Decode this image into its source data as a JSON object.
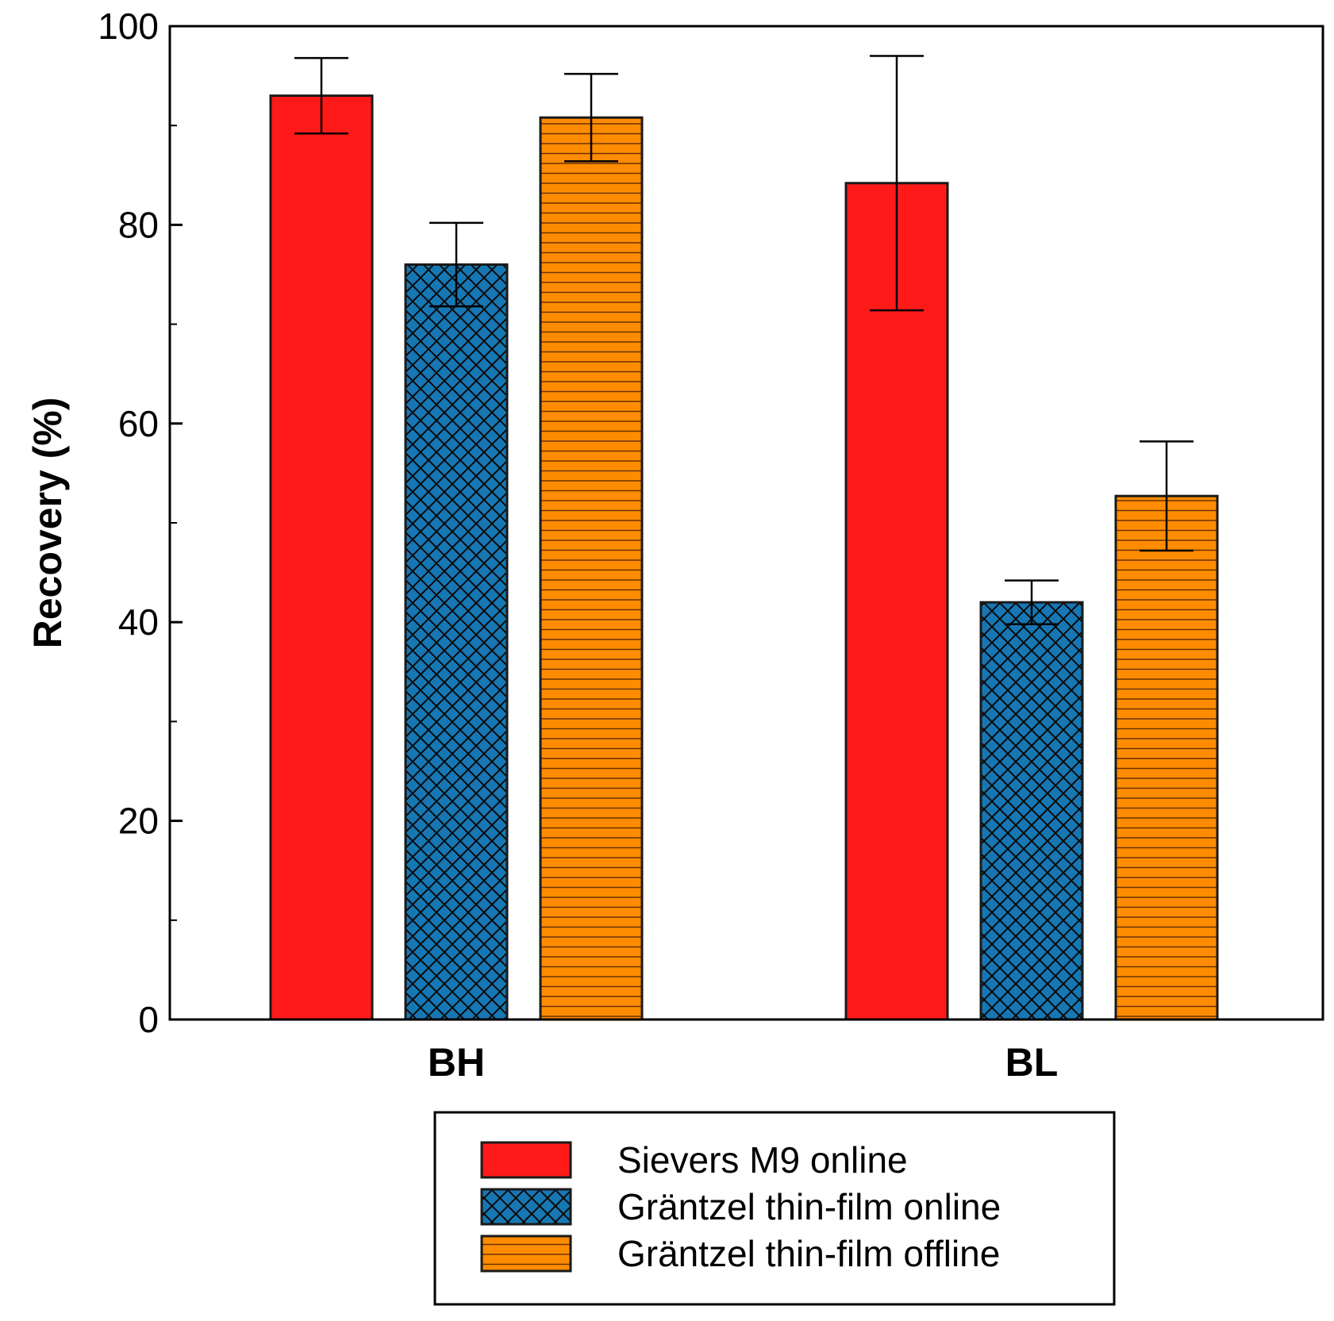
{
  "chart_data": {
    "type": "bar",
    "title": "",
    "xlabel": "",
    "ylabel": "Recovery (%)",
    "ylim": [
      0,
      100
    ],
    "yticks_major": [
      0,
      20,
      40,
      60,
      80,
      100
    ],
    "yticks_minor": [
      10,
      30,
      50,
      70,
      90
    ],
    "categories": [
      "BH",
      "BL"
    ],
    "grid": false,
    "legend_position": "bottom-center",
    "series": [
      {
        "name": "Sievers M9 online",
        "color": "#ff1a1a",
        "pattern": "solid",
        "values": [
          93,
          84.2
        ],
        "error_low": [
          89.2,
          71.4
        ],
        "error_high": [
          96.8,
          97.0
        ]
      },
      {
        "name": "Gräntzel thin-film online",
        "color": "#1777b3",
        "pattern": "crosshatch",
        "values": [
          76,
          42
        ],
        "error_low": [
          71.8,
          39.8
        ],
        "error_high": [
          80.2,
          44.2
        ]
      },
      {
        "name": "Gräntzel thin-film offline",
        "color": "#ff8c00",
        "pattern": "horizontal-lines",
        "values": [
          90.8,
          52.7
        ],
        "error_low": [
          86.4,
          47.2
        ],
        "error_high": [
          95.2,
          58.2
        ]
      }
    ]
  }
}
